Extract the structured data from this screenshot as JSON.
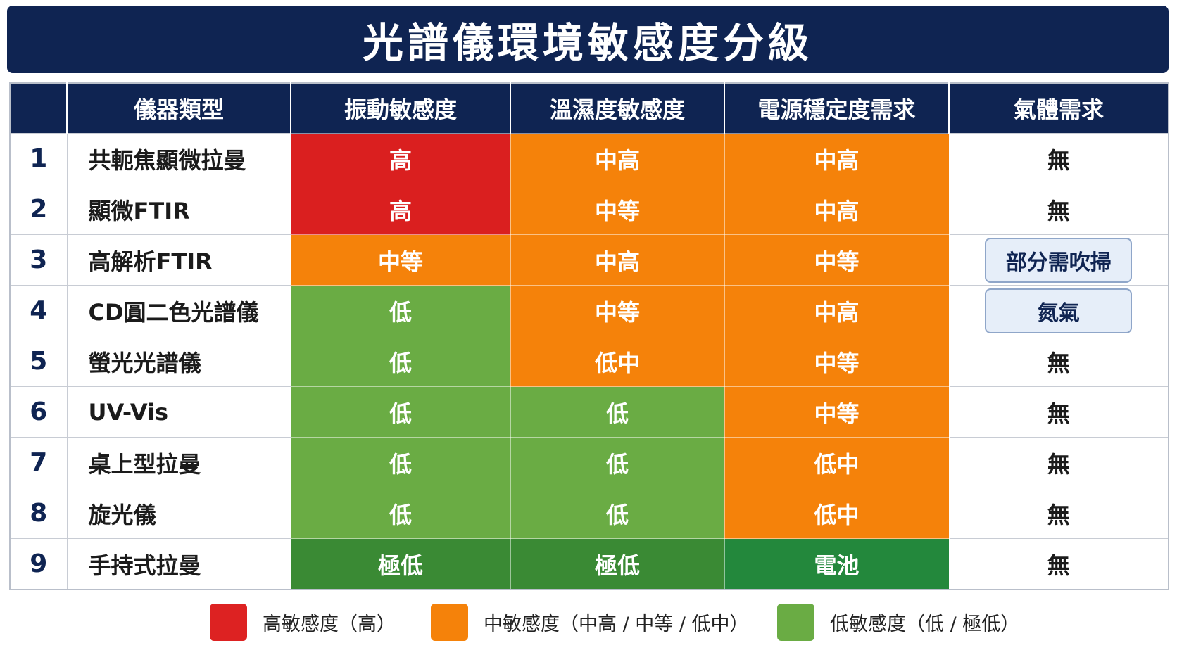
{
  "title": "光譜儀環境敏感度分級",
  "table": {
    "header": [
      "儀器類型",
      "振動敏感度",
      "溫濕度敏感度",
      "電源穩定度需求",
      "氣體需求"
    ],
    "rows": [
      {
        "index": "1",
        "name": "共軛焦顯微拉曼",
        "cells": [
          {
            "text": "高",
            "color": "#da1f1f"
          },
          {
            "text": "中高",
            "color": "#f5820a"
          },
          {
            "text": "中高",
            "color": "#f5820a"
          }
        ],
        "gas": {
          "text": "無"
        }
      },
      {
        "index": "2",
        "name": "顯微FTIR",
        "cells": [
          {
            "text": "高",
            "color": "#da1f1f"
          },
          {
            "text": "中等",
            "color": "#f5820a"
          },
          {
            "text": "中高",
            "color": "#f5820a"
          }
        ],
        "gas": {
          "text": "無"
        }
      },
      {
        "index": "3",
        "name": "高解析FTIR",
        "cells": [
          {
            "text": "中等",
            "color": "#f5820a"
          },
          {
            "text": "中高",
            "color": "#f5820a"
          },
          {
            "text": "中等",
            "color": "#f5820a"
          }
        ],
        "gas": {
          "text": "部分需吹掃",
          "badge": true
        }
      },
      {
        "index": "4",
        "name": "CD圓二色光譜儀",
        "cells": [
          {
            "text": "低",
            "color": "#6aac44"
          },
          {
            "text": "中等",
            "color": "#f5820a"
          },
          {
            "text": "中高",
            "color": "#f5820a"
          }
        ],
        "gas": {
          "text": "氮氣",
          "badge": true
        }
      },
      {
        "index": "5",
        "name": "螢光光譜儀",
        "cells": [
          {
            "text": "低",
            "color": "#6aac44"
          },
          {
            "text": "低中",
            "color": "#f5820a"
          },
          {
            "text": "中等",
            "color": "#f5820a"
          }
        ],
        "gas": {
          "text": "無"
        }
      },
      {
        "index": "6",
        "name": "UV-Vis",
        "cells": [
          {
            "text": "低",
            "color": "#6aac44"
          },
          {
            "text": "低",
            "color": "#6aac44"
          },
          {
            "text": "中等",
            "color": "#f5820a"
          }
        ],
        "gas": {
          "text": "無"
        }
      },
      {
        "index": "7",
        "name": "桌上型拉曼",
        "cells": [
          {
            "text": "低",
            "color": "#6aac44"
          },
          {
            "text": "低",
            "color": "#6aac44"
          },
          {
            "text": "低中",
            "color": "#f5820a"
          }
        ],
        "gas": {
          "text": "無"
        }
      },
      {
        "index": "8",
        "name": "旋光儀",
        "cells": [
          {
            "text": "低",
            "color": "#6aac44"
          },
          {
            "text": "低",
            "color": "#6aac44"
          },
          {
            "text": "低中",
            "color": "#f5820a"
          }
        ],
        "gas": {
          "text": "無"
        }
      },
      {
        "index": "9",
        "name": "手持式拉曼",
        "cells": [
          {
            "text": "極低",
            "color": "#3a8a34"
          },
          {
            "text": "極低",
            "color": "#3a8a34"
          },
          {
            "text": "電池",
            "color": "#23883c"
          }
        ],
        "gas": {
          "text": "無"
        }
      }
    ]
  },
  "legend": [
    {
      "label": "高敏感度（高）",
      "color": "#dd2222"
    },
    {
      "label": "中敏感度（中高 / 中等 / 低中）",
      "color": "#f5820a"
    },
    {
      "label": "低敏感度（低 / 極低）",
      "color": "#6aac44"
    }
  ]
}
